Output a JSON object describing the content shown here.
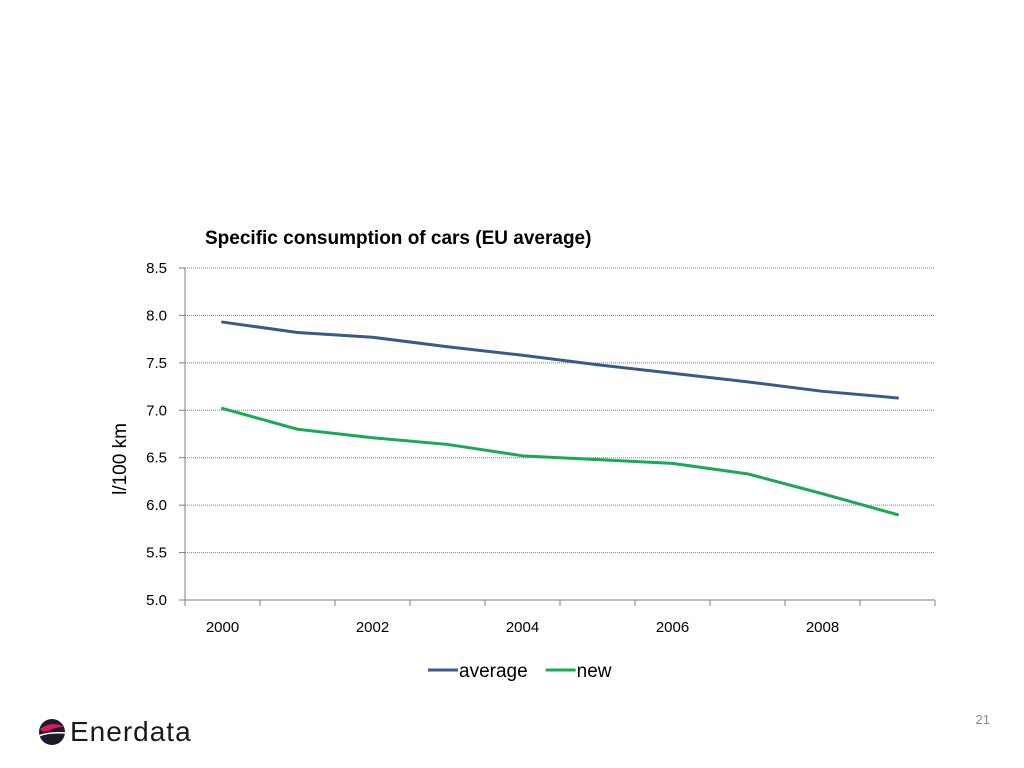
{
  "slide": {
    "page_number": "21",
    "logo_text": "Enerdata",
    "logo_icon": "enerdata-logo-icon"
  },
  "chart_data": {
    "type": "line",
    "title": "Specific consumption of cars (EU average)",
    "xlabel": "",
    "ylabel": "l/100 km",
    "ylim": [
      5.0,
      8.5
    ],
    "yticks": [
      "8.5",
      "8.0",
      "7.5",
      "7.0",
      "6.5",
      "6.0",
      "5.5",
      "5.0"
    ],
    "ytick_values": [
      8.5,
      8.0,
      7.5,
      7.0,
      6.5,
      6.0,
      5.5,
      5.0
    ],
    "x": [
      2000,
      2001,
      2002,
      2003,
      2004,
      2005,
      2006,
      2007,
      2008,
      2009
    ],
    "xticks": [
      "2000",
      "2002",
      "2004",
      "2006",
      "2008"
    ],
    "xtick_values": [
      2000,
      2002,
      2004,
      2006,
      2008
    ],
    "grid": "horizontal dotted",
    "legend_position": "bottom",
    "series": [
      {
        "name": "average",
        "color": "#3b5a8c",
        "values": [
          7.93,
          7.82,
          7.77,
          7.67,
          7.58,
          7.48,
          7.39,
          7.3,
          7.2,
          7.13
        ]
      },
      {
        "name": "new",
        "color": "#1aaa55",
        "values": [
          7.02,
          6.8,
          6.71,
          6.64,
          6.52,
          6.48,
          6.44,
          6.33,
          6.12,
          5.9
        ]
      }
    ]
  }
}
